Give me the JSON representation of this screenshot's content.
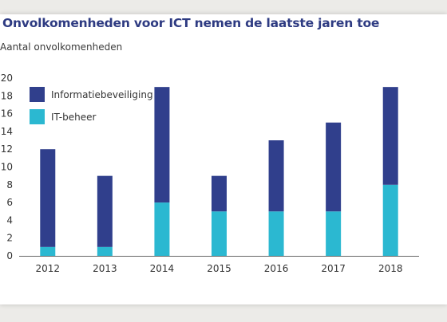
{
  "chart_data": {
    "type": "bar",
    "stacked": true,
    "title": "Onvolkomenheden voor ICT nemen de laatste jaren toe",
    "ylabel": "Aantal onvolkomenheden",
    "xlabel": "",
    "categories": [
      "2012",
      "2013",
      "2014",
      "2015",
      "2016",
      "2017",
      "2018"
    ],
    "series": [
      {
        "name": "IT-beheer",
        "color": "#2bb8d1",
        "values": [
          1,
          1,
          6,
          5,
          5,
          5,
          8
        ]
      },
      {
        "name": "Informatiebeveiliging",
        "color": "#303f8c",
        "values": [
          11,
          8,
          13,
          4,
          8,
          10,
          11
        ]
      }
    ],
    "legend_order": [
      "Informatiebeveiliging",
      "IT-beheer"
    ],
    "legend_position": "top-left",
    "ylim": [
      0,
      20
    ],
    "yticks": [
      "0",
      "2",
      "4",
      "6",
      "8",
      "10",
      "12",
      "14",
      "16",
      "18",
      "20"
    ],
    "grid": false
  }
}
